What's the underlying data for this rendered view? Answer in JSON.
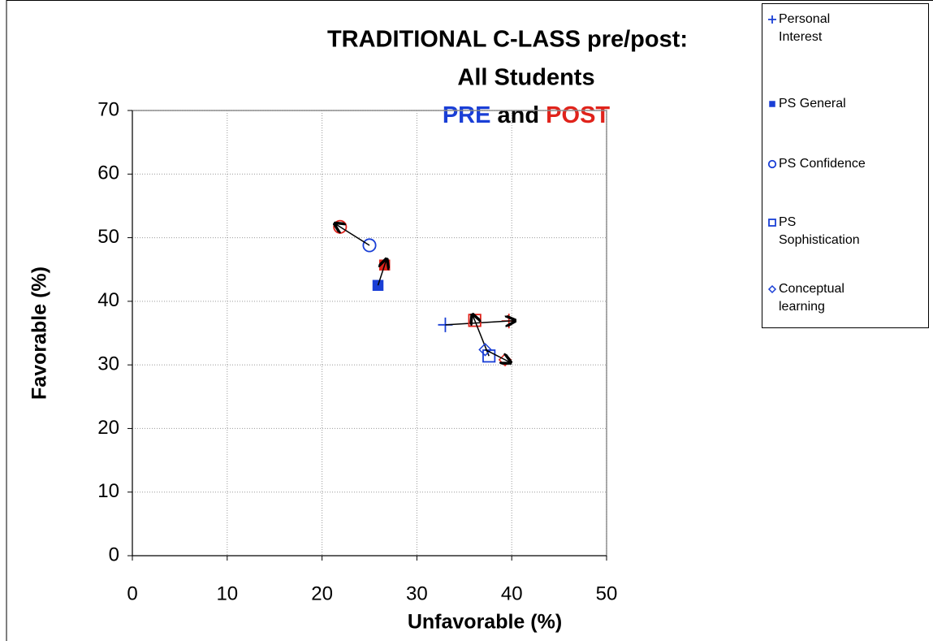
{
  "chart_data": {
    "type": "scatter",
    "title": "TRADITIONAL C-LASS pre/post:",
    "subtitle": "All Students",
    "title_pre": "PRE",
    "title_and": "and",
    "title_post": "POST",
    "pre_color": "#1a3fd6",
    "post_color": "#e0231b",
    "xlabel": "Unfavorable (%)",
    "ylabel": "Favorable (%)",
    "xlim": [
      0,
      50
    ],
    "ylim": [
      0,
      70
    ],
    "xticks": [
      0,
      10,
      20,
      30,
      40,
      50
    ],
    "yticks": [
      0,
      10,
      20,
      30,
      40,
      50,
      60,
      70
    ],
    "grid": true,
    "legend": "upper right",
    "series": [
      {
        "name": "Personal Interest",
        "marker": "plus",
        "x": [
          33.0,
          39.7
        ],
        "y": [
          36.3,
          36.9
        ]
      },
      {
        "name": "PS General",
        "marker": "filled-square",
        "x": [
          25.9,
          26.6
        ],
        "y": [
          42.5,
          45.7
        ]
      },
      {
        "name": "PS Confidence",
        "marker": "circle",
        "x": [
          25.0,
          21.9
        ],
        "y": [
          48.8,
          51.7
        ]
      },
      {
        "name": "PS Sophistication",
        "marker": "square",
        "x": [
          37.6,
          36.1
        ],
        "y": [
          31.4,
          37.0
        ]
      },
      {
        "name": "Conceptual learning",
        "marker": "diamond",
        "x": [
          37.2,
          39.3
        ],
        "y": [
          32.4,
          30.8
        ]
      }
    ]
  }
}
